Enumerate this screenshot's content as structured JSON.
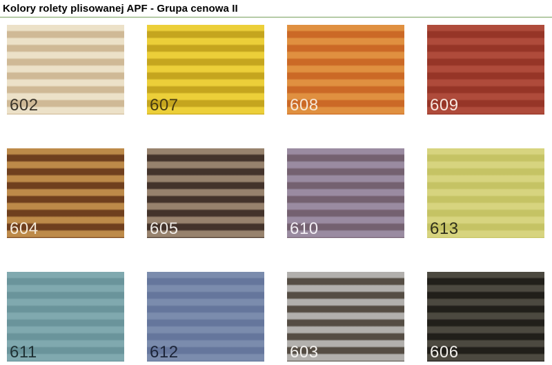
{
  "page": {
    "title": "Kolory rolety plisowanej APF - Grupa cenowa II",
    "divider_color": "#b5cba6",
    "background_color": "#ffffff"
  },
  "swatches": [
    {
      "code": "602",
      "light": "#ece1c8",
      "dark": "#cfb996",
      "label_color": "#3b352b"
    },
    {
      "code": "607",
      "light": "#eccf39",
      "dark": "#c5a51e",
      "label_color": "#473a12"
    },
    {
      "code": "608",
      "light": "#e09040",
      "dark": "#cb6926",
      "label_color": "#f6e7d6"
    },
    {
      "code": "609",
      "light": "#af4b3b",
      "dark": "#963527",
      "label_color": "#f7e6de"
    },
    {
      "code": "604",
      "light": "#bd8a49",
      "dark": "#6f3f1e",
      "label_color": "#f5ead9"
    },
    {
      "code": "605",
      "light": "#97826d",
      "dark": "#43332b",
      "label_color": "#efebe6"
    },
    {
      "code": "610",
      "light": "#9a8ba1",
      "dark": "#746170",
      "label_color": "#f2eef4"
    },
    {
      "code": "613",
      "light": "#d7d47f",
      "dark": "#c5c364",
      "label_color": "#2f2f1b"
    },
    {
      "code": "611",
      "light": "#80a9af",
      "dark": "#6a949b",
      "label_color": "#1f3134"
    },
    {
      "code": "612",
      "light": "#7b8cad",
      "dark": "#65769c",
      "label_color": "#1c2438"
    },
    {
      "code": "603",
      "light": "#b2b0ad",
      "dark": "#554d44",
      "label_color": "#f3f1ee"
    },
    {
      "code": "606",
      "light": "#4c4940",
      "dark": "#211f1a",
      "label_color": "#f0eeea"
    }
  ]
}
